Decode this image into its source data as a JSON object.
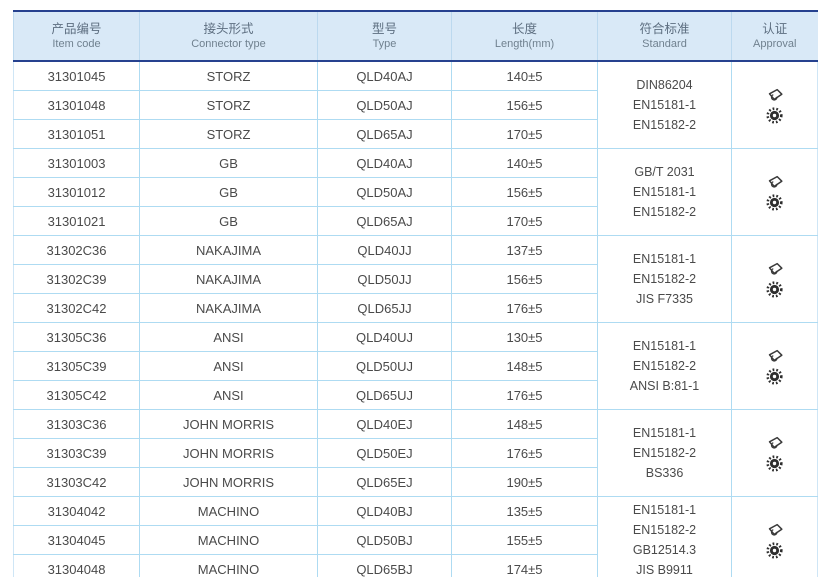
{
  "page": {
    "background": "#ffffff"
  },
  "table": {
    "header": {
      "background": "#d9e9f7",
      "border_color": "#26418f",
      "columns": [
        {
          "zh": "产品编号",
          "en": "Item code"
        },
        {
          "zh": "接头形式",
          "en": "Connector type"
        },
        {
          "zh": "型号",
          "en": "Type"
        },
        {
          "zh": "长度",
          "en": "Length(mm)"
        },
        {
          "zh": "符合标准",
          "en": "Standard"
        },
        {
          "zh": "认证",
          "en": "Approval"
        }
      ]
    },
    "grid_color": "#aedbf2",
    "text_color": "#4a4a4a",
    "groups": [
      {
        "rows": [
          {
            "item_code": "31301045",
            "connector_type": "STORZ",
            "type": "QLD40AJ",
            "length_mm": "140±5"
          },
          {
            "item_code": "31301048",
            "connector_type": "STORZ",
            "type": "QLD50AJ",
            "length_mm": "156±5"
          },
          {
            "item_code": "31301051",
            "connector_type": "STORZ",
            "type": "QLD65AJ",
            "length_mm": "170±5"
          }
        ],
        "standards": [
          "DIN86204",
          "EN15181-1",
          "EN15182-2"
        ],
        "approvals": [
          "type-approval-stamp-icon",
          "certification-seal-icon"
        ]
      },
      {
        "rows": [
          {
            "item_code": "31301003",
            "connector_type": "GB",
            "type": "QLD40AJ",
            "length_mm": "140±5"
          },
          {
            "item_code": "31301012",
            "connector_type": "GB",
            "type": "QLD50AJ",
            "length_mm": "156±5"
          },
          {
            "item_code": "31301021",
            "connector_type": "GB",
            "type": "QLD65AJ",
            "length_mm": "170±5"
          }
        ],
        "standards": [
          "GB/T 2031",
          "EN15181-1",
          "EN15182-2"
        ],
        "approvals": [
          "type-approval-stamp-icon",
          "certification-seal-icon"
        ]
      },
      {
        "rows": [
          {
            "item_code": "31302C36",
            "connector_type": "NAKAJIMA",
            "type": "QLD40JJ",
            "length_mm": "137±5"
          },
          {
            "item_code": "31302C39",
            "connector_type": "NAKAJIMA",
            "type": "QLD50JJ",
            "length_mm": "156±5"
          },
          {
            "item_code": "31302C42",
            "connector_type": "NAKAJIMA",
            "type": "QLD65JJ",
            "length_mm": "176±5"
          }
        ],
        "standards": [
          "EN15181-1",
          "EN15182-2",
          "JIS F7335"
        ],
        "approvals": [
          "type-approval-stamp-icon",
          "certification-seal-icon"
        ]
      },
      {
        "rows": [
          {
            "item_code": "31305C36",
            "connector_type": "ANSI",
            "type": "QLD40UJ",
            "length_mm": "130±5"
          },
          {
            "item_code": "31305C39",
            "connector_type": "ANSI",
            "type": "QLD50UJ",
            "length_mm": "148±5"
          },
          {
            "item_code": "31305C42",
            "connector_type": "ANSI",
            "type": "QLD65UJ",
            "length_mm": "176±5"
          }
        ],
        "standards": [
          "EN15181-1",
          "EN15182-2",
          "ANSI B:81-1"
        ],
        "approvals": [
          "type-approval-stamp-icon",
          "certification-seal-icon"
        ]
      },
      {
        "rows": [
          {
            "item_code": "31303C36",
            "connector_type": "JOHN MORRIS",
            "type": "QLD40EJ",
            "length_mm": "148±5"
          },
          {
            "item_code": "31303C39",
            "connector_type": "JOHN MORRIS",
            "type": "QLD50EJ",
            "length_mm": "176±5"
          },
          {
            "item_code": "31303C42",
            "connector_type": "JOHN MORRIS",
            "type": "QLD65EJ",
            "length_mm": "190±5"
          }
        ],
        "standards": [
          "EN15181-1",
          "EN15182-2",
          "BS336"
        ],
        "approvals": [
          "type-approval-stamp-icon",
          "certification-seal-icon"
        ]
      },
      {
        "rows": [
          {
            "item_code": "31304042",
            "connector_type": "MACHINO",
            "type": "QLD40BJ",
            "length_mm": "135±5"
          },
          {
            "item_code": "31304045",
            "connector_type": "MACHINO",
            "type": "QLD50BJ",
            "length_mm": "155±5"
          },
          {
            "item_code": "31304048",
            "connector_type": "MACHINO",
            "type": "QLD65BJ",
            "length_mm": "174±5"
          }
        ],
        "standards": [
          "EN15181-1",
          "EN15182-2",
          "GB12514.3",
          "JIS B9911"
        ],
        "approvals": [
          "type-approval-stamp-icon",
          "certification-seal-icon"
        ]
      }
    ]
  }
}
